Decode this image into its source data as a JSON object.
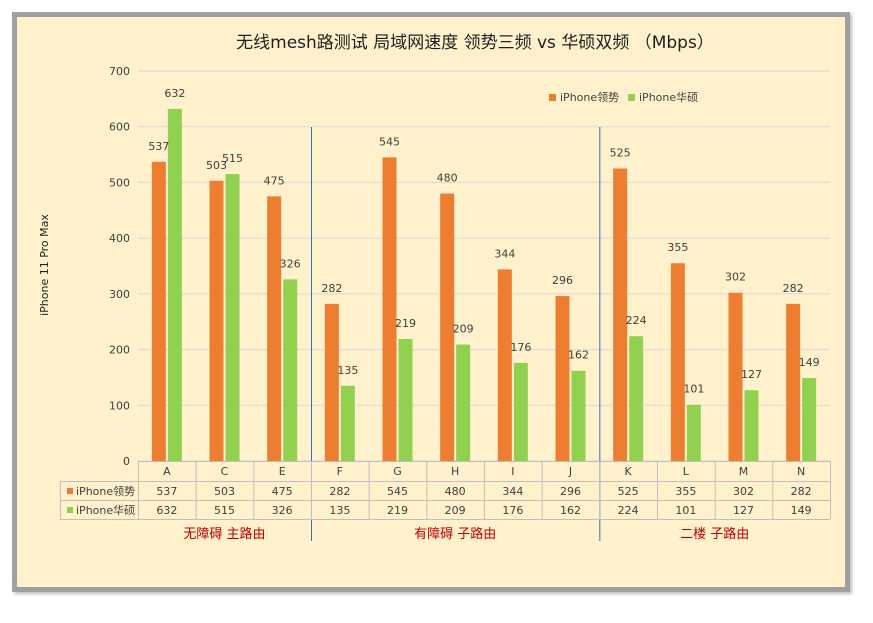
{
  "chart_data": {
    "type": "bar",
    "title": "无线mesh路测试 局域网速度 领势三频 vs 华硕双频 （Mbps）",
    "ylabel": "iPhone 11 Pro Max",
    "xlabel": "",
    "ylim": [
      0,
      700
    ],
    "yticks": [
      0,
      100,
      200,
      300,
      400,
      500,
      600,
      700
    ],
    "grid": true,
    "legend_position": "top-right",
    "categories": [
      "A",
      "C",
      "E",
      "F",
      "G",
      "H",
      "I",
      "J",
      "K",
      "L",
      "M",
      "N"
    ],
    "series": [
      {
        "name": "iPhone领势",
        "color": "#ed7d31",
        "values": [
          537,
          503,
          475,
          282,
          545,
          480,
          344,
          296,
          525,
          355,
          302,
          282
        ]
      },
      {
        "name": "iPhone华硕",
        "color": "#92d050",
        "values": [
          632,
          515,
          326,
          135,
          219,
          209,
          176,
          162,
          224,
          101,
          127,
          149
        ]
      }
    ],
    "groups": [
      {
        "label": "无障碍  主路由",
        "count": 3
      },
      {
        "label": "有障碍  子路由",
        "count": 5
      },
      {
        "label": "二楼 子路由",
        "count": 4
      }
    ],
    "colors": {
      "group_label": "#c00000",
      "divider": "#2e75b6",
      "grid": "#d9d9d9"
    }
  }
}
